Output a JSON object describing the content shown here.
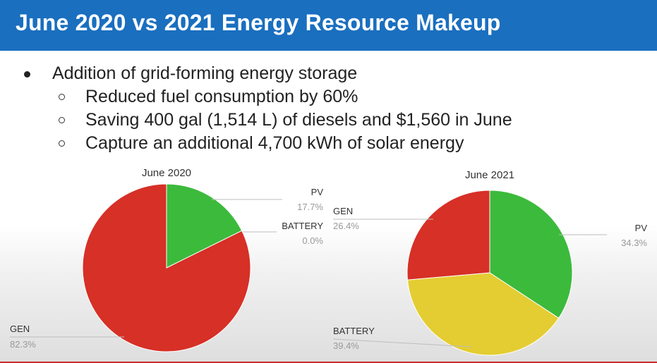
{
  "slide": {
    "title": "June 2020 vs 2021 Energy Resource Makeup",
    "bullets": [
      {
        "text": "Addition of grid-forming energy storage",
        "sub": [
          "Reduced fuel consumption by 60%",
          "Saving 400 gal (1,514 L) of diesels and $1,560 in June",
          "Capture an additional  4,700 kWh of solar energy"
        ]
      }
    ]
  },
  "colors": {
    "header": "#1a6fbf",
    "pv": "#3cba3c",
    "gen": "#d63027",
    "battery": "#e4cd32"
  },
  "chart_data": [
    {
      "type": "pie",
      "title": "June 2020",
      "slices": [
        {
          "label": "PV",
          "value": 17.7,
          "pct_label": "17.7%",
          "color": "#3cba3c"
        },
        {
          "label": "BATTERY",
          "value": 0.0,
          "pct_label": "0.0%",
          "color": "#e4cd32"
        },
        {
          "label": "GEN",
          "value": 82.3,
          "pct_label": "82.3%",
          "color": "#d63027"
        }
      ]
    },
    {
      "type": "pie",
      "title": "June 2021",
      "slices": [
        {
          "label": "PV",
          "value": 34.3,
          "pct_label": "34.3%",
          "color": "#3cba3c"
        },
        {
          "label": "BATTERY",
          "value": 39.4,
          "pct_label": "39.4%",
          "color": "#e4cd32"
        },
        {
          "label": "GEN",
          "value": 26.4,
          "pct_label": "26.4%",
          "color": "#d63027"
        }
      ]
    }
  ]
}
